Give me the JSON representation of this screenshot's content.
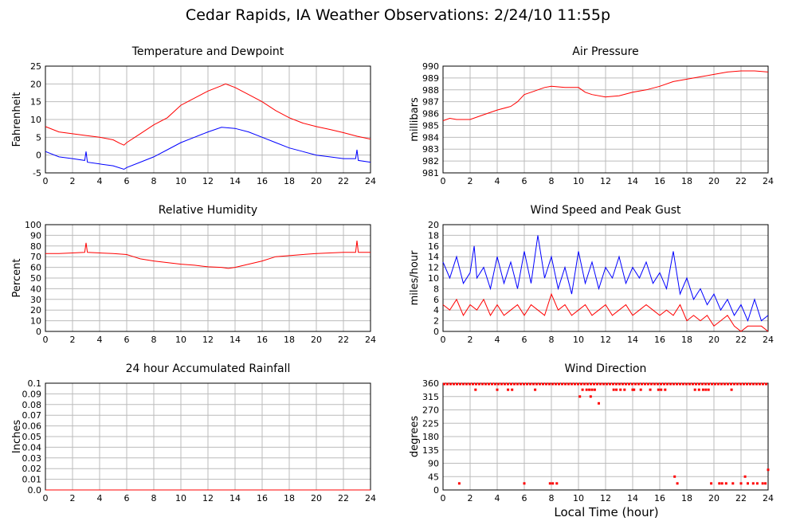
{
  "page_title": "Cedar Rapids, IA Weather Observations: 2/24/10 11:55p",
  "global_xlabel": "Local Time (hour)",
  "colors": {
    "red": "#ff0000",
    "blue": "#0000ff",
    "grid": "#bbbbbb"
  },
  "chart_data": [
    {
      "id": "temperature",
      "type": "line",
      "title": "Temperature and Dewpoint",
      "xlabel": "",
      "ylabel": "Fahrenheit",
      "xlim": [
        0,
        24
      ],
      "ylim": [
        -5,
        25
      ],
      "xticks": [
        0,
        2,
        4,
        6,
        8,
        10,
        12,
        14,
        16,
        18,
        20,
        22,
        24
      ],
      "yticks": [
        -5,
        0,
        5,
        10,
        15,
        20,
        25
      ],
      "grid": true,
      "series": [
        {
          "color": "#ff0000",
          "x": [
            0,
            1,
            2,
            3,
            4,
            5,
            5.5,
            5.8,
            6,
            7,
            8,
            9,
            10,
            11,
            12,
            13,
            13.3,
            14,
            15,
            16,
            17,
            18,
            19,
            20,
            21,
            22,
            23,
            24
          ],
          "y": [
            8,
            6.5,
            6,
            5.5,
            5,
            4.3,
            3.3,
            2.8,
            3.5,
            6,
            8.5,
            10.5,
            14,
            16,
            18,
            19.5,
            20,
            19,
            17,
            15,
            12.5,
            10.5,
            9,
            8,
            7.2,
            6.3,
            5.3,
            4.5
          ]
        },
        {
          "color": "#0000ff",
          "x": [
            0,
            1,
            2,
            2.9,
            3,
            3.1,
            4,
            5,
            5.8,
            6,
            7,
            8,
            9,
            10,
            11,
            12,
            13,
            14,
            15,
            16,
            17,
            18,
            19,
            20,
            21,
            22,
            22.9,
            23,
            23.1,
            24
          ],
          "y": [
            1,
            -0.5,
            -1,
            -1.5,
            1,
            -2,
            -2.5,
            -3,
            -4,
            -3.5,
            -2,
            -0.5,
            1.5,
            3.5,
            5,
            6.5,
            7.8,
            7.5,
            6.5,
            5,
            3.5,
            2,
            1,
            0,
            -0.5,
            -1,
            -1,
            1.5,
            -1.5,
            -2
          ]
        }
      ]
    },
    {
      "id": "pressure",
      "type": "line",
      "title": "Air Pressure",
      "xlabel": "",
      "ylabel": "millibars",
      "xlim": [
        0,
        24
      ],
      "ylim": [
        981,
        990
      ],
      "xticks": [
        0,
        2,
        4,
        6,
        8,
        10,
        12,
        14,
        16,
        18,
        20,
        22,
        24
      ],
      "yticks": [
        981,
        982,
        983,
        984,
        985,
        986,
        987,
        988,
        989,
        990
      ],
      "grid": true,
      "series": [
        {
          "color": "#ff0000",
          "x": [
            0,
            0.5,
            1,
            2,
            3,
            4,
            5,
            5.5,
            6,
            6.5,
            7,
            7.5,
            8,
            9,
            10,
            10.5,
            11,
            12,
            13,
            14,
            15,
            16,
            17,
            18,
            19,
            20,
            21,
            22,
            23,
            24
          ],
          "y": [
            985.4,
            985.6,
            985.5,
            985.5,
            985.9,
            986.3,
            986.6,
            987.0,
            987.6,
            987.8,
            988.0,
            988.2,
            988.3,
            988.2,
            988.2,
            987.8,
            987.6,
            987.4,
            987.5,
            987.8,
            988.0,
            988.3,
            988.7,
            988.9,
            989.1,
            989.3,
            989.5,
            989.6,
            989.6,
            989.5
          ]
        }
      ]
    },
    {
      "id": "humidity",
      "type": "line",
      "title": "Relative Humidity",
      "xlabel": "",
      "ylabel": "Percent",
      "xlim": [
        0,
        24
      ],
      "ylim": [
        0,
        100
      ],
      "xticks": [
        0,
        2,
        4,
        6,
        8,
        10,
        12,
        14,
        16,
        18,
        20,
        22,
        24
      ],
      "yticks": [
        0,
        10,
        20,
        30,
        40,
        50,
        60,
        70,
        80,
        90,
        100
      ],
      "grid": true,
      "series": [
        {
          "color": "#ff0000",
          "x": [
            0,
            1,
            2,
            2.9,
            3,
            3.1,
            4,
            5,
            6,
            6.5,
            7,
            8,
            9,
            10,
            11,
            12,
            13,
            13.5,
            14,
            15,
            16,
            17,
            18,
            19,
            20,
            21,
            22,
            22.9,
            23,
            23.1,
            24
          ],
          "y": [
            73,
            73,
            73.5,
            74,
            83,
            74,
            73.5,
            73,
            72,
            70,
            68,
            66,
            64.5,
            63,
            62,
            60.5,
            60,
            59,
            60,
            63,
            66,
            70,
            71,
            72,
            73,
            73.5,
            74,
            74,
            85,
            74,
            74
          ]
        }
      ]
    },
    {
      "id": "wind",
      "type": "line",
      "title": "Wind Speed and Peak Gust",
      "xlabel": "",
      "ylabel": "miles/hour",
      "xlim": [
        0,
        24
      ],
      "ylim": [
        0,
        20
      ],
      "xticks": [
        0,
        2,
        4,
        6,
        8,
        10,
        12,
        14,
        16,
        18,
        20,
        22,
        24
      ],
      "yticks": [
        0,
        2,
        4,
        6,
        8,
        10,
        12,
        14,
        16,
        18,
        20
      ],
      "grid": true,
      "series": [
        {
          "color": "#0000ff",
          "x": [
            0,
            0.5,
            1,
            1.5,
            2,
            2.3,
            2.5,
            3,
            3.5,
            4,
            4.5,
            5,
            5.5,
            6,
            6.5,
            7,
            7.5,
            8,
            8.5,
            9,
            9.5,
            10,
            10.5,
            11,
            11.5,
            12,
            12.5,
            13,
            13.5,
            14,
            14.5,
            15,
            15.5,
            16,
            16.5,
            17,
            17.5,
            18,
            18.5,
            19,
            19.5,
            20,
            20.5,
            21,
            21.5,
            22,
            22.5,
            23,
            23.5,
            24
          ],
          "y": [
            13,
            10,
            14,
            9,
            11,
            16,
            10,
            12,
            8,
            14,
            9,
            13,
            8,
            15,
            9,
            18,
            10,
            14,
            8,
            12,
            7,
            15,
            9,
            13,
            8,
            12,
            10,
            14,
            9,
            12,
            10,
            13,
            9,
            11,
            8,
            15,
            7,
            10,
            6,
            8,
            5,
            7,
            4,
            6,
            3,
            5,
            2,
            6,
            2,
            3
          ]
        },
        {
          "color": "#ff0000",
          "x": [
            0,
            0.5,
            1,
            1.5,
            2,
            2.5,
            3,
            3.5,
            4,
            4.5,
            5,
            5.5,
            6,
            6.5,
            7,
            7.5,
            8,
            8.5,
            9,
            9.5,
            10,
            10.5,
            11,
            11.5,
            12,
            12.5,
            13,
            13.5,
            14,
            14.5,
            15,
            15.5,
            16,
            16.5,
            17,
            17.5,
            18,
            18.5,
            19,
            19.5,
            20,
            20.5,
            21,
            21.5,
            22,
            22.5,
            23,
            23.5,
            24
          ],
          "y": [
            5,
            4,
            6,
            3,
            5,
            4,
            6,
            3,
            5,
            3,
            4,
            5,
            3,
            5,
            4,
            3,
            7,
            4,
            5,
            3,
            4,
            5,
            3,
            4,
            5,
            3,
            4,
            5,
            3,
            4,
            5,
            4,
            3,
            4,
            3,
            5,
            2,
            3,
            2,
            3,
            1,
            2,
            3,
            1,
            0,
            1,
            1,
            1,
            0
          ]
        }
      ]
    },
    {
      "id": "rainfall",
      "type": "line",
      "title": "24 hour Accumulated Rainfall",
      "xlabel": "",
      "ylabel": "Inches",
      "xlim": [
        0,
        24
      ],
      "ylim": [
        0,
        0.1
      ],
      "xticks": [
        0,
        2,
        4,
        6,
        8,
        10,
        12,
        14,
        16,
        18,
        20,
        22,
        24
      ],
      "ytick_labels": [
        "0.0",
        "0.01",
        "0.02",
        "0.03",
        "0.04",
        "0.05",
        "0.06",
        "0.07",
        "0.08",
        "0.09",
        "0.1"
      ],
      "yticks": [
        0,
        0.01,
        0.02,
        0.03,
        0.04,
        0.05,
        0.06,
        0.07,
        0.08,
        0.09,
        0.1
      ],
      "grid": true,
      "series": [
        {
          "color": "#ff0000",
          "x": [
            0,
            24
          ],
          "y": [
            0,
            0
          ]
        }
      ]
    },
    {
      "id": "direction",
      "type": "scatter",
      "title": "Wind Direction",
      "xlabel": "Local Time (hour)",
      "ylabel": "degrees",
      "xlim": [
        0,
        24
      ],
      "ylim": [
        0,
        360
      ],
      "xticks": [
        0,
        2,
        4,
        6,
        8,
        10,
        12,
        14,
        16,
        18,
        20,
        22,
        24
      ],
      "yticks": [
        0,
        45,
        90,
        135,
        180,
        225,
        270,
        315,
        360
      ],
      "grid": true,
      "series": [
        {
          "color": "#ff0000",
          "x": [
            2.4,
            4,
            4.8,
            5.1,
            6.8,
            10.3,
            10.6,
            10.8,
            11.0,
            11.2,
            12.6,
            12.8,
            13.1,
            13.4,
            14,
            14.1,
            14.6,
            15.3,
            15.9,
            16.1,
            16.4,
            18.6,
            18.9,
            19.2,
            19.4,
            19.6,
            21.3,
            10.1,
            10.9,
            11.5,
            1.2,
            6,
            7.9,
            8.1,
            8.4,
            17.1,
            17.3,
            19.8,
            20.4,
            20.6,
            20.9,
            21.4,
            22,
            22.3,
            22.5,
            22.9,
            23.2,
            23.6,
            23.8,
            24
          ],
          "y": [
            338,
            338,
            338,
            338,
            338,
            338,
            338,
            338,
            338,
            338,
            338,
            338,
            338,
            338,
            338,
            338,
            338,
            338,
            338,
            338,
            338,
            338,
            338,
            338,
            338,
            338,
            338,
            315,
            315,
            292,
            22,
            22,
            22,
            22,
            22,
            45,
            22,
            22,
            22,
            22,
            22,
            22,
            22,
            45,
            22,
            22,
            22,
            22,
            22,
            68
          ]
        }
      ],
      "baseline_value": 360
    }
  ]
}
